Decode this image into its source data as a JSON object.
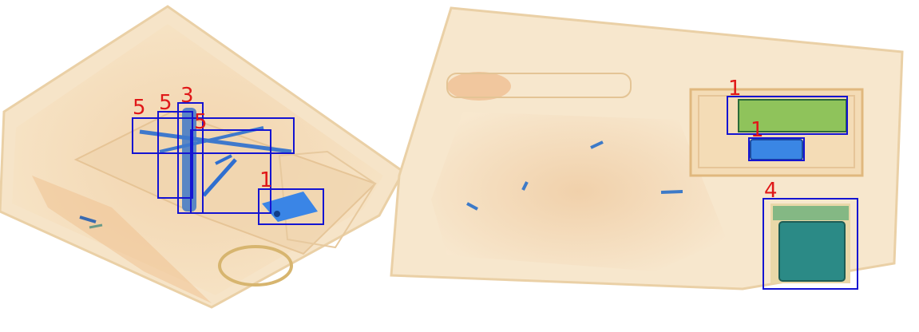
{
  "colors": {
    "box": "#1414d2",
    "label": "#e01818",
    "tray": "#f3dcb8",
    "tray_edge": "#e6c28e",
    "metal_blue": "#2f6fd0",
    "green_item": "#8ac35a",
    "background": "#ffffff"
  },
  "detections": [
    {
      "label": "5"
    },
    {
      "label": "5"
    },
    {
      "label": "3"
    },
    {
      "label": "5"
    },
    {
      "label": "1"
    },
    {
      "label": "1"
    },
    {
      "label": "1"
    },
    {
      "label": "4"
    }
  ]
}
